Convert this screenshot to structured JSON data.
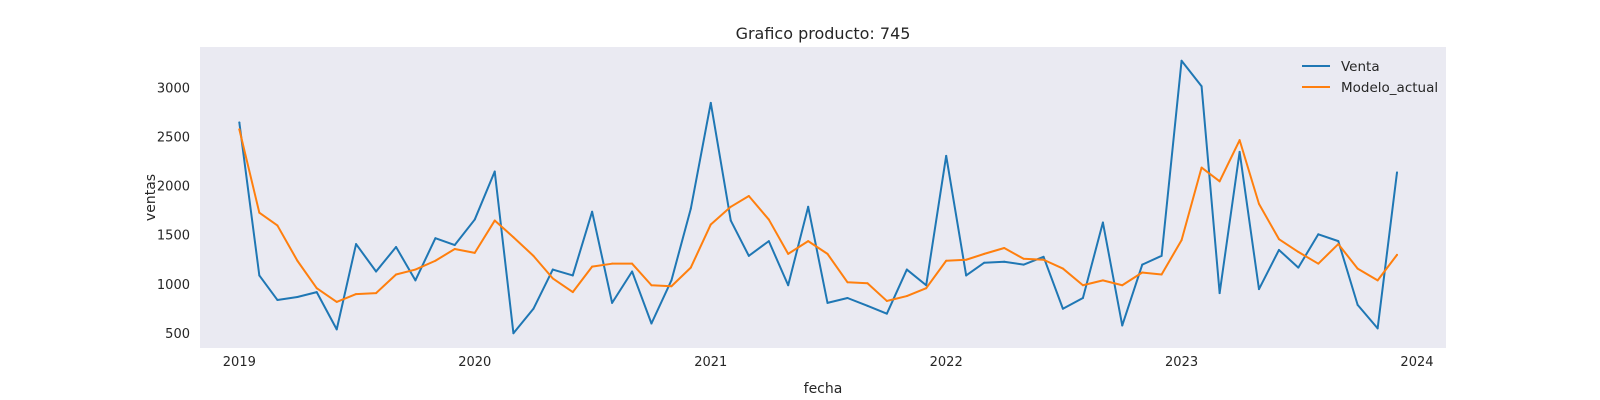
{
  "chart_data": {
    "type": "line",
    "title": "Grafico producto: 745",
    "xlabel": "fecha",
    "ylabel": "ventas",
    "x_type": "date",
    "xlim": [
      "2018-11-01",
      "2024-02-15"
    ],
    "ylim": [
      350,
      3420
    ],
    "x_ticks": [
      "2019-01-01",
      "2020-01-01",
      "2021-01-01",
      "2022-01-01",
      "2023-01-01",
      "2024-01-01"
    ],
    "x_tick_labels": [
      "2019",
      "2020",
      "2021",
      "2022",
      "2023",
      "2024"
    ],
    "y_ticks": [
      500,
      1000,
      1500,
      2000,
      2500,
      3000
    ],
    "y_tick_labels": [
      "500",
      "1000",
      "1500",
      "2000",
      "2500",
      "3000"
    ],
    "grid": false,
    "background_color": "#eaeaf2",
    "legend_position": "top-right",
    "x": [
      "2019-01-01",
      "2019-02-01",
      "2019-03-01",
      "2019-04-01",
      "2019-05-01",
      "2019-06-01",
      "2019-07-01",
      "2019-08-01",
      "2019-09-01",
      "2019-10-01",
      "2019-11-01",
      "2019-12-01",
      "2020-01-01",
      "2020-02-01",
      "2020-03-01",
      "2020-04-01",
      "2020-05-01",
      "2020-06-01",
      "2020-07-01",
      "2020-08-01",
      "2020-09-01",
      "2020-10-01",
      "2020-11-01",
      "2020-12-01",
      "2021-01-01",
      "2021-02-01",
      "2021-03-01",
      "2021-04-01",
      "2021-05-01",
      "2021-06-01",
      "2021-07-01",
      "2021-08-01",
      "2021-09-01",
      "2021-10-01",
      "2021-11-01",
      "2021-12-01",
      "2022-01-01",
      "2022-02-01",
      "2022-03-01",
      "2022-04-01",
      "2022-05-01",
      "2022-06-01",
      "2022-07-01",
      "2022-08-01",
      "2022-09-01",
      "2022-10-01",
      "2022-11-01",
      "2022-12-01",
      "2023-01-01",
      "2023-02-01",
      "2023-03-01",
      "2023-04-01",
      "2023-05-01",
      "2023-06-01",
      "2023-07-01",
      "2023-08-01",
      "2023-09-01",
      "2023-10-01",
      "2023-11-01",
      "2023-12-01"
    ],
    "series": [
      {
        "name": "Venta",
        "color": "#1f77b4",
        "values": [
          2650,
          1090,
          840,
          870,
          920,
          540,
          1410,
          1130,
          1380,
          1040,
          1470,
          1400,
          1660,
          2150,
          500,
          750,
          1150,
          1090,
          1740,
          810,
          1130,
          600,
          1040,
          1770,
          2850,
          1650,
          1290,
          1440,
          990,
          1790,
          810,
          860,
          780,
          700,
          1150,
          990,
          2310,
          1090,
          1220,
          1230,
          1200,
          1280,
          750,
          860,
          1630,
          580,
          1200,
          1290,
          3280,
          3020,
          910,
          2350,
          950,
          1350,
          1170,
          1510,
          1440,
          790,
          550,
          2140
        ]
      },
      {
        "name": "Modelo_actual",
        "color": "#ff7f0e",
        "values": [
          2580,
          1730,
          1600,
          1240,
          960,
          820,
          900,
          910,
          1100,
          1150,
          1240,
          1360,
          1320,
          1650,
          1480,
          1290,
          1060,
          920,
          1180,
          1210,
          1210,
          990,
          980,
          1170,
          1610,
          1790,
          1900,
          1660,
          1310,
          1440,
          1310,
          1020,
          1010,
          830,
          880,
          960,
          1240,
          1250,
          1310,
          1370,
          1260,
          1250,
          1160,
          990,
          1040,
          990,
          1120,
          1100,
          1450,
          2190,
          2050,
          2470,
          1820,
          1460,
          1330,
          1210,
          1410,
          1160,
          1040,
          1300
        ]
      }
    ]
  }
}
